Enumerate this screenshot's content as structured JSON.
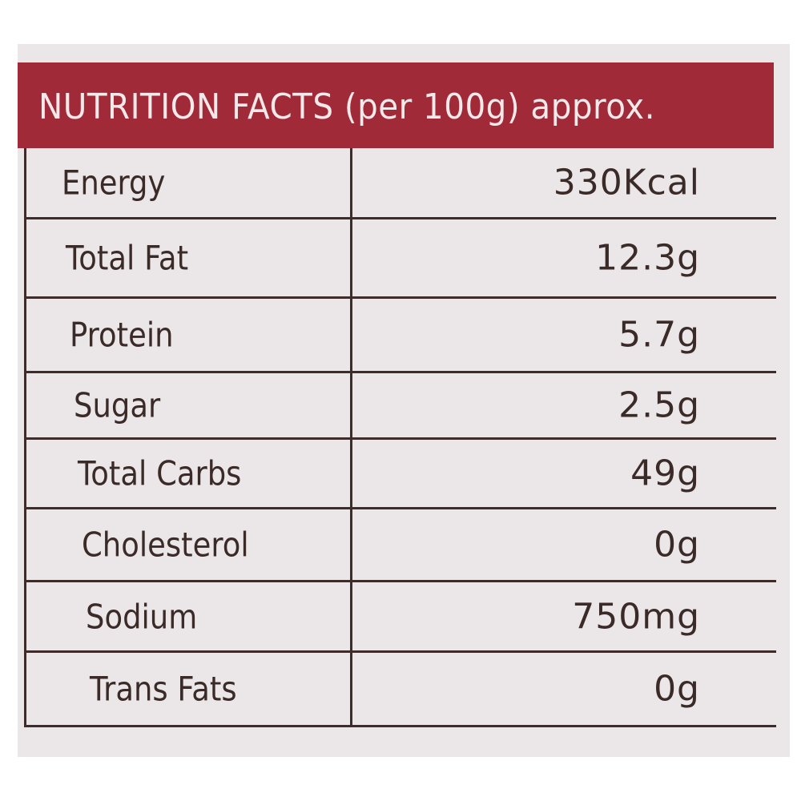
{
  "header": {
    "title": "NUTRITION FACTS (per 100g) approx."
  },
  "table": {
    "rows": [
      [
        "Energy",
        "330Kcal"
      ],
      [
        "Total Fat",
        "12.3g"
      ],
      [
        "Protein",
        "5.7g"
      ],
      [
        "Sugar",
        "2.5g"
      ],
      [
        "Total Carbs",
        "49g"
      ],
      [
        "Cholesterol",
        "0g"
      ],
      [
        "Sodium",
        "750mg"
      ],
      [
        "Trans Fats",
        "0g"
      ]
    ]
  }
}
